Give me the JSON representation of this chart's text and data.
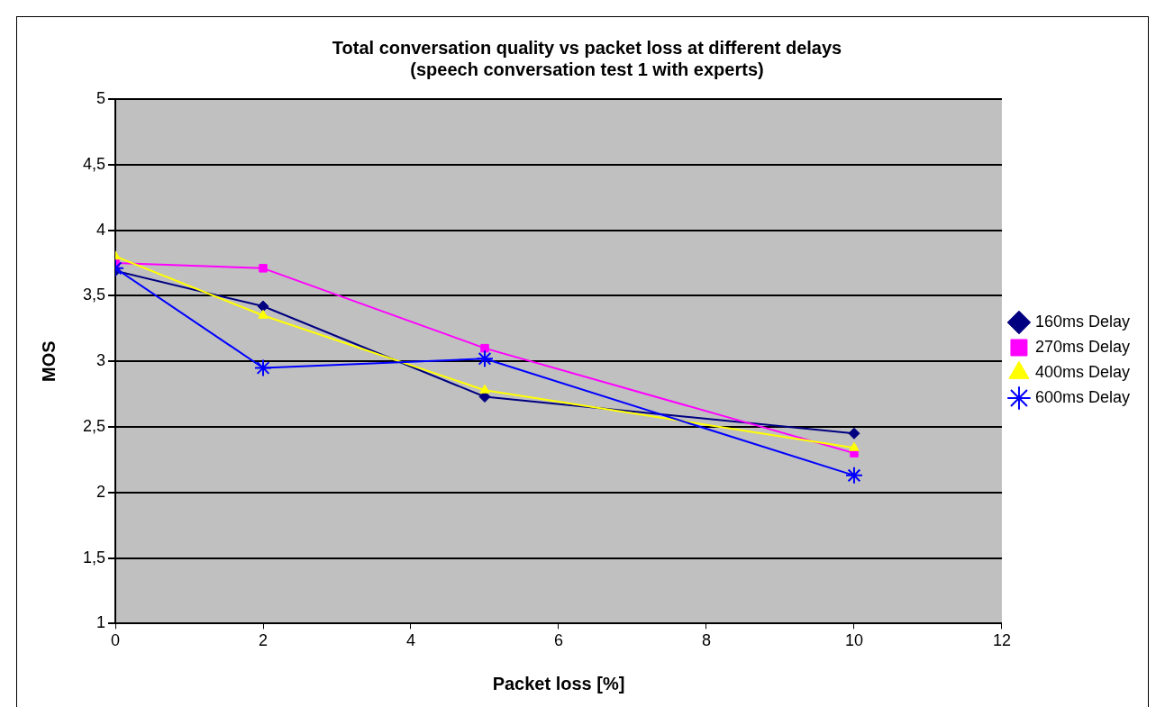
{
  "chart_data": {
    "type": "line",
    "title": [
      "Total conversation quality vs packet loss at different delays",
      "(speech conversation test 1 with experts)"
    ],
    "xlabel": "Packet loss [%]",
    "ylabel": "MOS",
    "x": [
      0,
      2,
      5,
      10
    ],
    "series": [
      {
        "name": "160ms Delay",
        "color": "#000080",
        "marker": "diamond",
        "values": [
          3.69,
          3.42,
          2.73,
          2.45
        ]
      },
      {
        "name": "270ms Delay",
        "color": "#ff00ff",
        "marker": "square",
        "values": [
          3.75,
          3.71,
          3.1,
          2.3
        ]
      },
      {
        "name": "400ms Delay",
        "color": "#ffff00",
        "marker": "triangle",
        "values": [
          3.8,
          3.35,
          2.78,
          2.34
        ]
      },
      {
        "name": "600ms Delay",
        "color": "#0000ff",
        "marker": "cross",
        "values": [
          3.71,
          2.95,
          3.02,
          2.13
        ]
      }
    ],
    "xlim": [
      0,
      12
    ],
    "xticks": [
      0,
      2,
      4,
      6,
      8,
      10,
      12
    ],
    "ylim": [
      1,
      5
    ],
    "yticks": [
      1,
      {
        "value": 1.5,
        "label": "1,5"
      },
      2,
      {
        "value": 2.5,
        "label": "2,5"
      },
      3,
      {
        "value": 3.5,
        "label": "3,5"
      },
      4,
      {
        "value": 4.5,
        "label": "4,5"
      },
      5
    ],
    "grid": "y",
    "legend": "right"
  }
}
